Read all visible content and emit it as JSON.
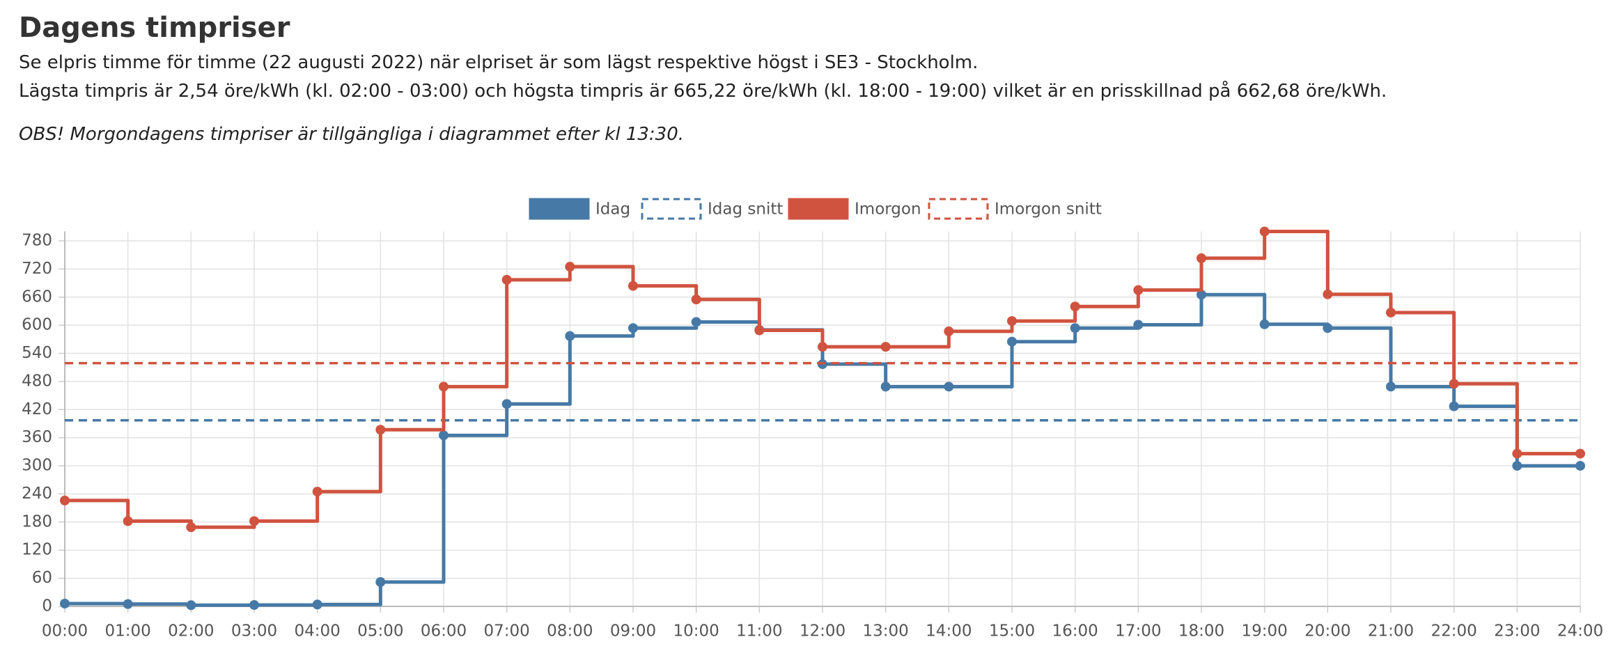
{
  "header": {
    "title": "Dagens timpriser",
    "line1": "Se elpris timme för timme (22 augusti 2022) när elpriset är som lägst respektive högst i SE3 - Stockholm.",
    "line2": "Lägsta timpris är 2,54 öre/kWh (kl. 02:00 - 03:00) och högsta timpris är 665,22 öre/kWh (kl. 18:00 - 19:00) vilket är en prisskillnad på 662,68 öre/kWh.",
    "note": "OBS! Morgondagens timpriser är tillgängliga i diagrammet efter kl 13:30."
  },
  "chart_data": {
    "type": "line",
    "stepped": true,
    "grid": true,
    "legend": "top",
    "categories": [
      "00:00",
      "01:00",
      "02:00",
      "03:00",
      "04:00",
      "05:00",
      "06:00",
      "07:00",
      "08:00",
      "09:00",
      "10:00",
      "11:00",
      "12:00",
      "13:00",
      "14:00",
      "15:00",
      "16:00",
      "17:00",
      "18:00",
      "19:00",
      "20:00",
      "21:00",
      "22:00",
      "23:00",
      "24:00"
    ],
    "series": [
      {
        "name": "Idag",
        "color": "#4679a6",
        "values": [
          6,
          5,
          2.54,
          3,
          4,
          52,
          365,
          432,
          577,
          594,
          607,
          590,
          517,
          469,
          469,
          565,
          594,
          601,
          665.22,
          602,
          594,
          469,
          427,
          300,
          300
        ]
      },
      {
        "name": "Idag snitt",
        "color": "#4679a6",
        "dashed": true,
        "value": 397
      },
      {
        "name": "Imorgon",
        "color": "#d0533f",
        "values": [
          226,
          182,
          169,
          182,
          245,
          377,
          469,
          697,
          725,
          684,
          655,
          589,
          554,
          554,
          587,
          609,
          640,
          675,
          743,
          800,
          666,
          627,
          475,
          326,
          326
        ]
      },
      {
        "name": "Imorgon snitt",
        "color": "#d0533f",
        "dashed": true,
        "value": 519
      }
    ],
    "ylim": [
      0,
      800
    ],
    "yticks": [
      0,
      60,
      120,
      180,
      240,
      300,
      360,
      420,
      480,
      540,
      600,
      660,
      720,
      780
    ]
  }
}
